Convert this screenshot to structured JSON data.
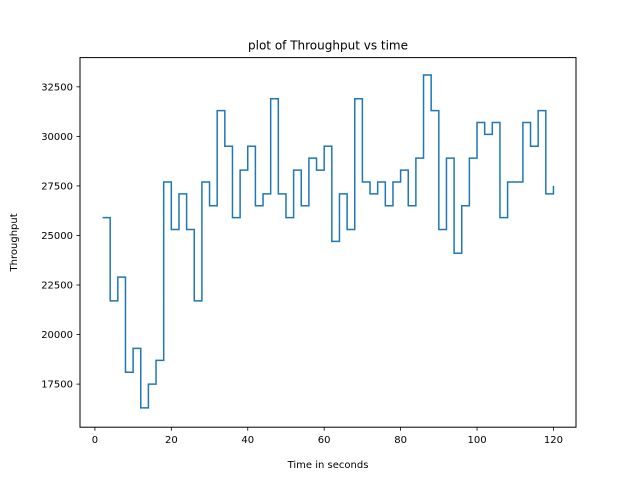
{
  "chart_data": {
    "type": "line",
    "style": "step",
    "title": "plot of Throughput vs time",
    "xlabel": "Time in seconds",
    "ylabel": "Throughput",
    "xlim": [
      -3.9,
      125.9
    ],
    "ylim": [
      15325,
      33975
    ],
    "xticks": [
      0,
      20,
      40,
      60,
      80,
      100,
      120
    ],
    "yticks": [
      17500,
      20000,
      22500,
      25000,
      27500,
      30000,
      32500
    ],
    "xtick_labels": [
      "0",
      "20",
      "40",
      "60",
      "80",
      "100",
      "120"
    ],
    "ytick_labels": [
      "17500",
      "20000",
      "22500",
      "25000",
      "27500",
      "30000",
      "32500"
    ],
    "grid": false,
    "line_color": "#1f77b4",
    "series": [
      {
        "x": [
          2,
          4,
          6,
          8,
          10,
          12,
          14,
          16,
          18,
          20,
          22,
          24,
          26,
          28,
          30,
          32,
          34,
          36,
          38,
          40,
          42,
          44,
          46,
          48,
          50,
          52,
          54,
          56,
          58,
          60,
          62,
          64,
          66,
          68,
          70,
          72,
          74,
          76,
          78,
          80,
          82,
          84,
          86,
          88,
          90,
          92,
          94,
          96,
          98,
          100,
          102,
          104,
          106,
          108,
          110,
          112,
          114,
          116,
          118,
          120
        ],
        "y": [
          25900,
          21700,
          22900,
          18100,
          19300,
          16300,
          17500,
          18700,
          27700,
          25300,
          27100,
          25300,
          21700,
          27700,
          26500,
          31300,
          29500,
          25900,
          28300,
          29500,
          26500,
          27100,
          31900,
          27100,
          25900,
          28300,
          26500,
          28900,
          28300,
          29500,
          24700,
          27100,
          25300,
          31900,
          27700,
          27100,
          27700,
          26500,
          27700,
          28300,
          26500,
          28900,
          33100,
          31300,
          25300,
          28900,
          24100,
          26500,
          28900,
          30700,
          30100,
          30700,
          25900,
          27700,
          27700,
          30700,
          29500,
          31300,
          27100,
          27500
        ]
      }
    ]
  }
}
